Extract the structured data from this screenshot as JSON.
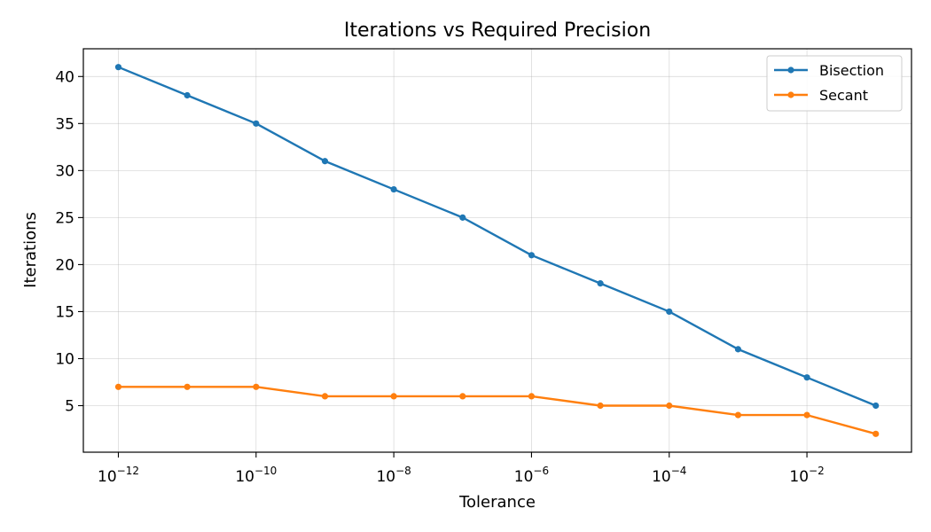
{
  "chart_data": {
    "type": "line",
    "title": "Iterations vs Required Precision",
    "xlabel": "Tolerance",
    "ylabel": "Iterations",
    "x_scale": "log",
    "x": [
      1e-12,
      1e-11,
      1e-10,
      1e-09,
      1e-08,
      1e-07,
      1e-06,
      1e-05,
      0.0001,
      0.001,
      0.01,
      0.1
    ],
    "x_ticks": [
      {
        "base": "10",
        "exp": "−12",
        "value": 1e-12
      },
      {
        "base": "10",
        "exp": "−10",
        "value": 1e-10
      },
      {
        "base": "10",
        "exp": "−8",
        "value": 1e-08
      },
      {
        "base": "10",
        "exp": "−6",
        "value": 1e-06
      },
      {
        "base": "10",
        "exp": "−4",
        "value": 0.0001
      },
      {
        "base": "10",
        "exp": "−2",
        "value": 0.01
      }
    ],
    "y_ticks": [
      5,
      10,
      15,
      20,
      25,
      30,
      35,
      40
    ],
    "xlim": [
      3.1e-13,
      0.33
    ],
    "ylim": [
      0.05,
      42.95
    ],
    "grid": true,
    "legend_position": "top-right",
    "series": [
      {
        "name": "Bisection",
        "color": "#1f77b4",
        "values": [
          41,
          38,
          35,
          31,
          28,
          25,
          21,
          18,
          15,
          11,
          8,
          5
        ]
      },
      {
        "name": "Secant",
        "color": "#ff7f0e",
        "values": [
          7,
          7,
          7,
          6,
          6,
          6,
          6,
          5,
          5,
          4,
          4,
          2
        ]
      }
    ]
  }
}
